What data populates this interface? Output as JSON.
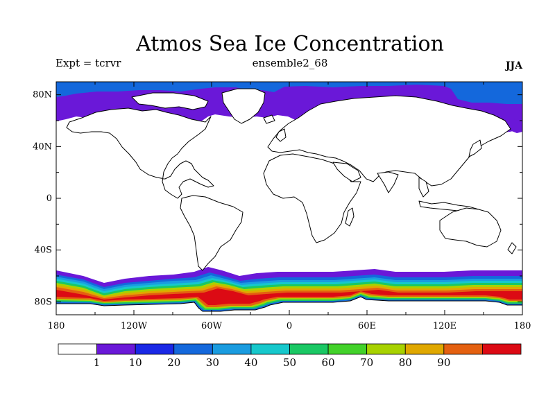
{
  "title": "Atmos Sea Ice Concentration",
  "expt_label": "Expt = tcrvr",
  "ensemble_label": "ensemble2_68",
  "season_label": "JJA",
  "lat_ticks": [
    {
      "value": 80,
      "label": "80N"
    },
    {
      "value": 40,
      "label": "40N"
    },
    {
      "value": 0,
      "label": "0"
    },
    {
      "value": -40,
      "label": "40S"
    },
    {
      "value": -80,
      "label": "80S"
    }
  ],
  "lon_ticks": [
    {
      "value": -180,
      "label": "180"
    },
    {
      "value": -120,
      "label": "120W"
    },
    {
      "value": -60,
      "label": "60W"
    },
    {
      "value": 0,
      "label": "0"
    },
    {
      "value": 60,
      "label": "60E"
    },
    {
      "value": 120,
      "label": "120E"
    },
    {
      "value": 180,
      "label": "180"
    }
  ],
  "map_extent": {
    "lon": [
      -180,
      180
    ],
    "lat": [
      -90,
      90
    ]
  },
  "colorbar": {
    "colors": [
      "#ffffff",
      "#6a18d8",
      "#1a28e6",
      "#1468dc",
      "#1a9ce0",
      "#16c8cc",
      "#1ac864",
      "#42d22a",
      "#a8d200",
      "#e0a800",
      "#e46010",
      "#dc0a14"
    ],
    "labels": [
      "1",
      "10",
      "20",
      "30",
      "40",
      "50",
      "60",
      "70",
      "80",
      "90"
    ]
  },
  "palette": {
    "land": "#ffffff",
    "coastline": "#000000",
    "ice_low": "#6a18d8",
    "ice_blue": "#1468dc",
    "ice_mid": "#1a9ce0",
    "ice_cyan": "#16c8cc",
    "ice_green": "#1ac864",
    "ice_yellow": "#a8d200",
    "ice_orange": "#e0a800",
    "ice_dark_orange": "#e46010",
    "ice_red": "#dc0a14"
  }
}
